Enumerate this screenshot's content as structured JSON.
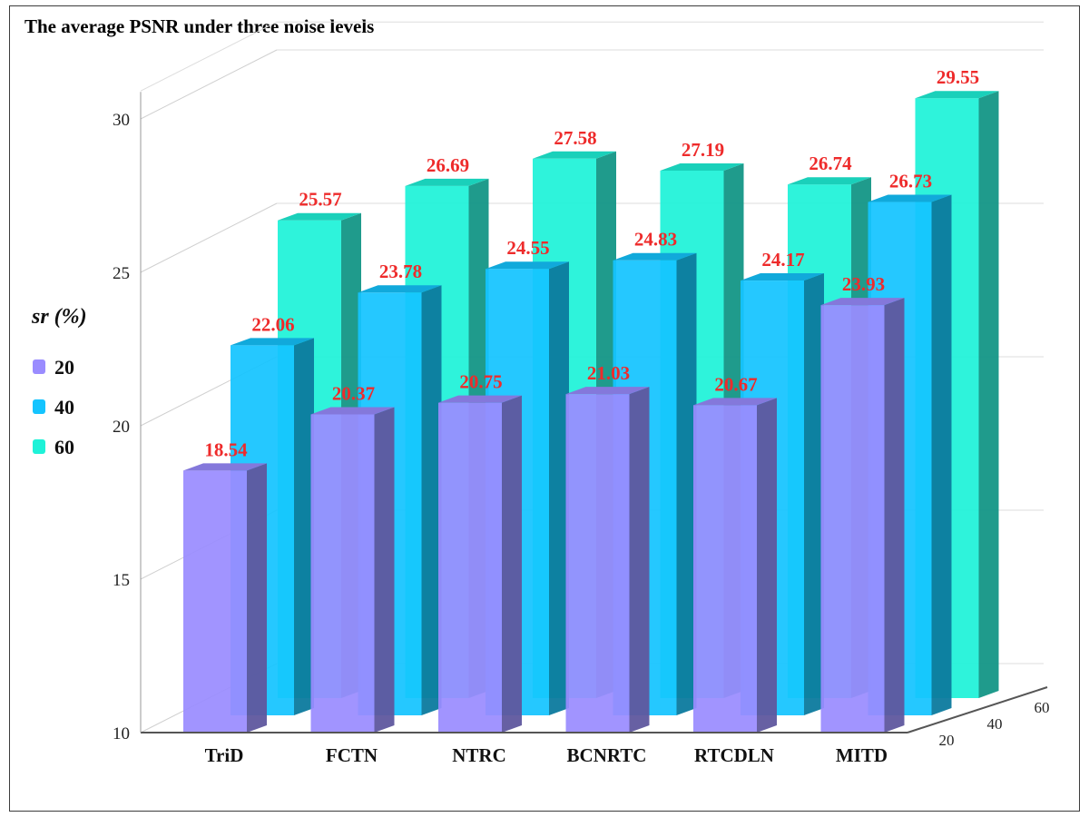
{
  "chart_data": {
    "type": "bar",
    "title": "The average PSNR under three noise levels",
    "categories": [
      "TriD",
      "FCTN",
      "NTRC",
      "BCNRTC",
      "RTCDLN",
      "MITD"
    ],
    "series": [
      {
        "name": "20",
        "values": [
          18.54,
          20.37,
          20.75,
          21.03,
          20.67,
          23.93
        ],
        "color": "#9a8cff"
      },
      {
        "name": "40",
        "values": [
          22.06,
          23.78,
          24.55,
          24.83,
          24.17,
          26.73
        ],
        "color": "#14c4ff"
      },
      {
        "name": "60",
        "values": [
          25.57,
          26.69,
          27.58,
          27.19,
          26.74,
          29.55
        ],
        "color": "#1ef2d8"
      }
    ],
    "yticks": [
      "10",
      "15",
      "20",
      "25",
      "30"
    ],
    "ylim": [
      10,
      31
    ],
    "depth_ticks": [
      "20",
      "40",
      "60"
    ],
    "legend": {
      "title": "sr (%)",
      "placement": "left",
      "items": [
        "20",
        "40",
        "60"
      ]
    },
    "grid": true,
    "view": "3d"
  }
}
